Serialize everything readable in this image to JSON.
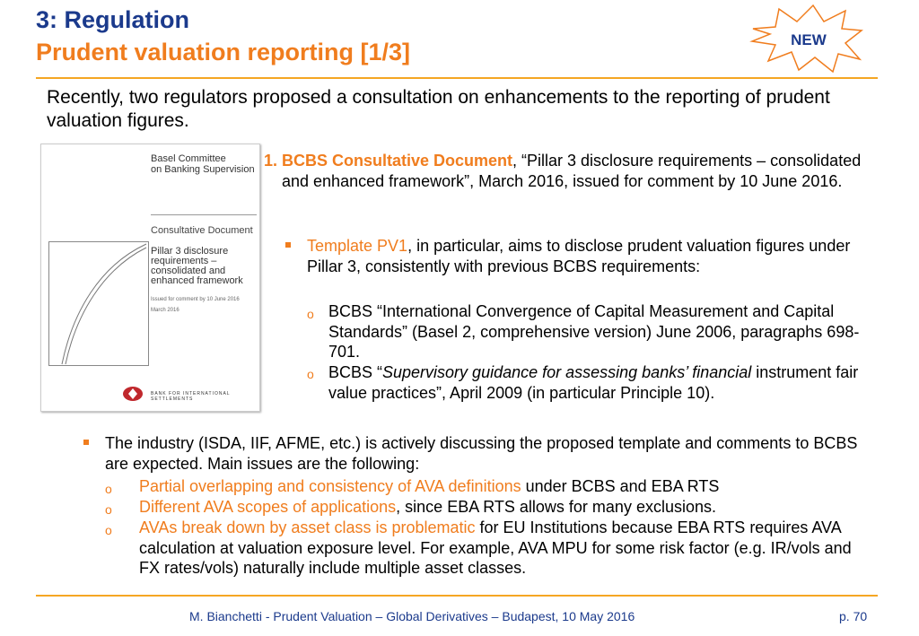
{
  "header": {
    "title": "3: Regulation",
    "subtitle": "Prudent valuation reporting [1/3]",
    "badge": "NEW"
  },
  "intro": "Recently, two regulators proposed a consultation on enhancements to the reporting of prudent valuation figures.",
  "cover": {
    "org_line1": "Basel Committee",
    "org_line2": "on Banking Supervision",
    "doc_type": "Consultative Document",
    "doc_title_1": "Pillar 3 disclosure",
    "doc_title_2": "requirements –",
    "doc_title_3": "consolidated and",
    "doc_title_4": "enhanced framework",
    "issued": "Issued for comment by 10 June 2016",
    "month": "March 2016",
    "bis": "BANK FOR INTERNATIONAL SETTLEMENTS"
  },
  "item1": {
    "number": "1.",
    "label": "BCBS Consultative Document",
    "text": ", “Pillar 3 disclosure requirements – consolidated and enhanced framework”, March 2016, issued for comment by 10 June 2016."
  },
  "pv1": {
    "label": "Template PV1",
    "text": ", in particular, aims to disclose prudent valuation figures under Pillar 3, consistently with previous BCBS requirements:",
    "sub1": "BCBS “International Convergence of Capital Measurement and Capital Standards” (Basel 2, comprehensive version) June 2006, paragraphs 698-701.",
    "sub2_pre": "BCBS “",
    "sub2_italic": "Supervisory guidance for assessing banks’ financial",
    "sub2_post": " instrument fair value practices”, April 2009 (in particular Principle 10)."
  },
  "industry": {
    "text": "The industry (ISDA, IIF, AFME, etc.) is actively discussing the proposed template and comments to BCBS are expected. Main issues are the following:",
    "issues": [
      {
        "highlight": "Partial overlapping and consistency of AVA definitions",
        "rest": " under BCBS and EBA RTS"
      },
      {
        "highlight": "Different AVA scopes of applications",
        "rest": ", since EBA RTS allows for many exclusions."
      },
      {
        "highlight": "AVAs break down by asset class is problematic",
        "rest": " for EU Institutions because EBA RTS requires AVA calculation at valuation exposure level. For example, AVA MPU for some risk factor (e.g. IR/vols and FX rates/vols) naturally include multiple asset classes."
      }
    ]
  },
  "footer": {
    "text": "M. Bianchetti - Prudent Valuation – Global Derivatives – Budapest, 10 May 2016",
    "page": "p. 70"
  },
  "colors": {
    "title_blue": "#1b3a8c",
    "accent_orange": "#f07d1e",
    "rule_orange": "#f5a623"
  }
}
